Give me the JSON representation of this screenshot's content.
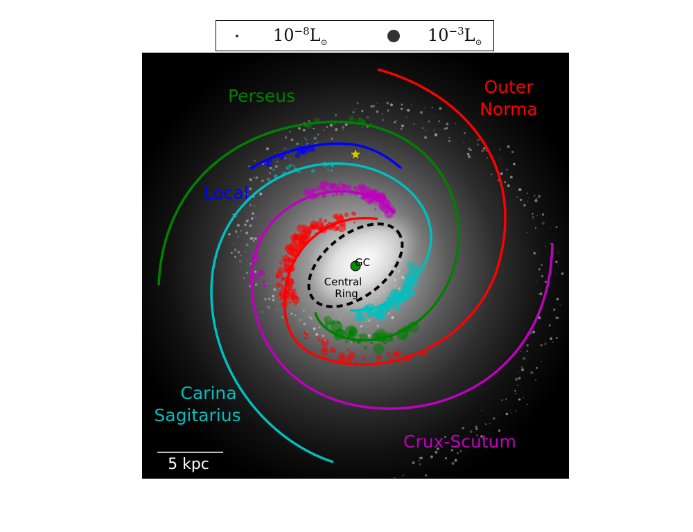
{
  "legend": {
    "small": {
      "base": "10",
      "exponent": "−8",
      "unit": "L",
      "sub": "⊙"
    },
    "large": {
      "base": "10",
      "exponent": "−3",
      "unit": "L",
      "sub": "⊙"
    }
  },
  "arms": {
    "perseus": {
      "label": "Perseus",
      "color": "#008000"
    },
    "outer_norma": {
      "label_line1": "Outer",
      "label_line2": "Norma",
      "color": "#ff0000"
    },
    "local": {
      "label": "Local",
      "color": "#0000ff"
    },
    "carina_sagitarius": {
      "label_line1": "Carina",
      "label_line2": "Sagitarius",
      "color": "#00bfbf"
    },
    "crux_scutum": {
      "label": "Crux-Scutum",
      "color": "#bf00bf"
    }
  },
  "markers": {
    "gc_label": "GC",
    "ring_line1": "Central",
    "ring_line2": "Ring",
    "sun_icon": "star-icon",
    "gc_icon": "circle-icon"
  },
  "scale_bar": {
    "label": "5 kpc"
  }
}
